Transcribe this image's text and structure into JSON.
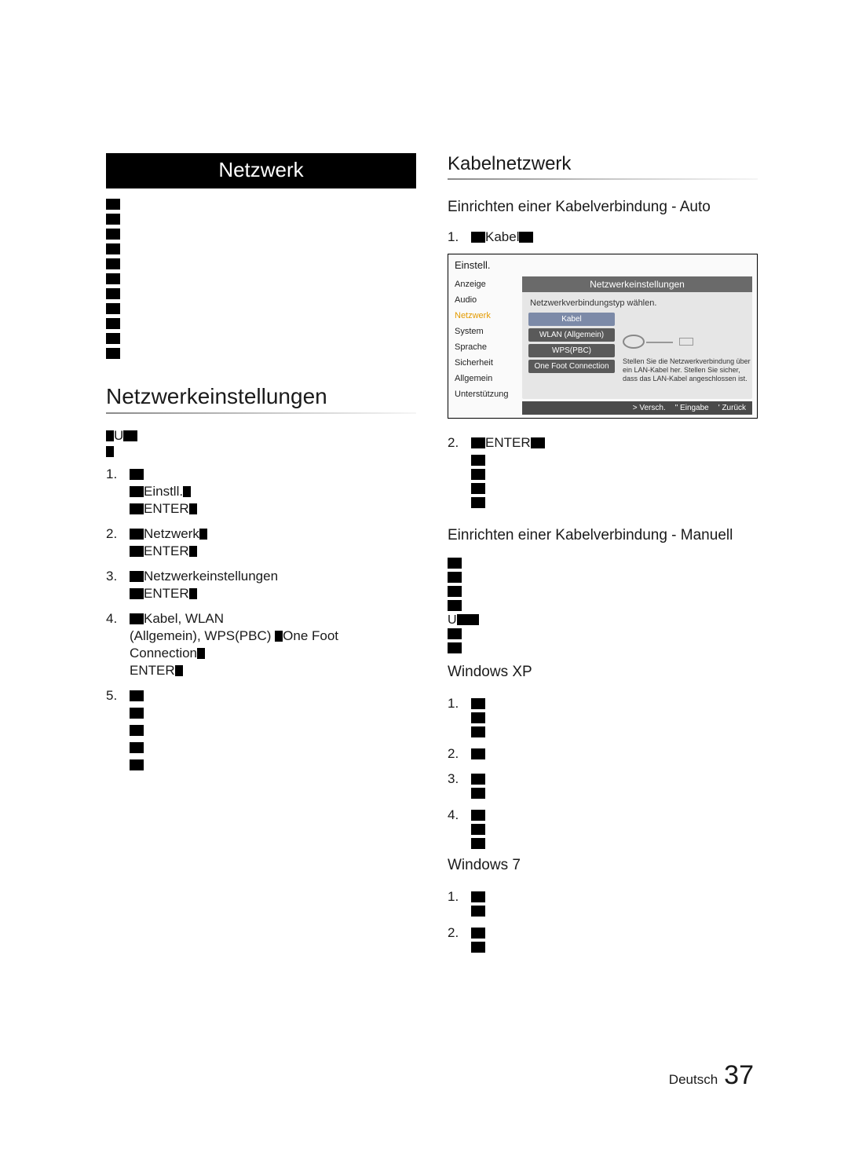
{
  "left": {
    "panel_title": "Netzwerk",
    "blurb_lines": 11,
    "section_title": "Netzwerkeinstellungen",
    "intro_prefix": "U",
    "steps": [
      {
        "n": "1.",
        "lines": [
          {
            "blob": true,
            "text": ""
          },
          {
            "blob": true,
            "text": "Einstll.",
            "tail_blob": true
          },
          {
            "blob": true,
            "text": "ENTER",
            "tail_blob": true
          }
        ]
      },
      {
        "n": "2.",
        "lines": [
          {
            "blob": true,
            "text": "Netzwerk",
            "tail_blob": true
          },
          {
            "blob": true,
            "text": "ENTER",
            "tail_blob": true
          }
        ]
      },
      {
        "n": "3.",
        "lines": [
          {
            "blob": true,
            "text": "Netzwerkeinstellungen"
          },
          {
            "blob": true,
            "text": "ENTER",
            "tail_blob": true
          }
        ]
      },
      {
        "n": "4.",
        "lines": [
          {
            "blob": true,
            "text": "Kabel, WLAN"
          },
          {
            "text": "(Allgemein), WPS(PBC) ",
            "mid_blob": true,
            "tail": "One Foot"
          },
          {
            "text": "Connection",
            "tail_blob": true
          },
          {
            "text": "ENTER",
            "tail_blob": true
          }
        ]
      },
      {
        "n": "5.",
        "lines": [
          {
            "blob": true
          },
          {
            "blob": true
          },
          {
            "blob": true
          },
          {
            "blob": true
          },
          {
            "blob": true
          }
        ]
      }
    ]
  },
  "right": {
    "heading": "Kabelnetzwerk",
    "sub_auto": "Einrichten einer Kabelverbindung - Auto",
    "step1": {
      "n": "1.",
      "blob": true,
      "text": "Kabel",
      "tail_blob": true
    },
    "screenshot": {
      "title": "Einstell.",
      "side": [
        "Anzeige",
        "Audio",
        "Netzwerk",
        "System",
        "Sprache",
        "Sicherheit",
        "Allgemein",
        "Unterstützung"
      ],
      "side_selected_index": 2,
      "tab": "Netzwerkeinstellungen",
      "msg": "Netzwerkverbindungstyp wählen.",
      "buttons": [
        "Kabel",
        "WLAN (Allgemein)",
        "WPS(PBC)",
        "One Foot Connection"
      ],
      "button_selected_index": 0,
      "desc": "Stellen Sie die Netzwerkverbindung über ein LAN-Kabel her. Stellen Sie sicher, dass das LAN-Kabel angeschlossen ist.",
      "footer": [
        "> Versch.",
        "\" Eingabe",
        "' Zurück"
      ]
    },
    "step2": {
      "n": "2.",
      "blob": true,
      "text": "ENTER",
      "tail_blob": true,
      "extra_lines": 4
    },
    "sub_manual": "Einrichten einer Kabelverbindung - Manuell",
    "manual_blurb_lines": 7,
    "winxp_label": "Windows XP",
    "winxp_steps": [
      {
        "n": "1.",
        "lines": 3
      },
      {
        "n": "2.",
        "lines": 1
      },
      {
        "n": "3.",
        "lines": 2
      },
      {
        "n": "4.",
        "lines": 3
      }
    ],
    "win7_label": "Windows 7",
    "win7_steps": [
      {
        "n": "1.",
        "lines": 2
      },
      {
        "n": "2.",
        "lines": 2
      }
    ]
  },
  "footer": {
    "lang": "Deutsch",
    "page": "37"
  }
}
